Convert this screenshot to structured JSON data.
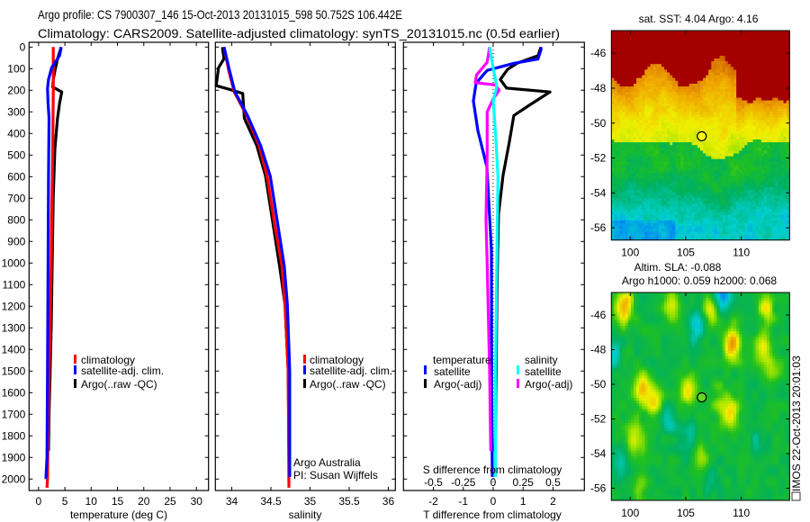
{
  "title": {
    "line1": "Argo profile: CS 7900307_146 15-Oct-2013 20131015_598 50.752S 106.442E",
    "line2": "Climatology: CARS2009. Satellite-adjusted climatology: synTS_20131015.nc (0.5d earlier)"
  },
  "colors": {
    "climatology": "#ff0000",
    "satellite": "#0000ff",
    "argo": "#000000",
    "sal_satellite": "#00ffff",
    "sal_argo": "#ff00ff"
  },
  "chart_data": [
    {
      "type": "line",
      "id": "temperature",
      "xlabel": "temperature (deg C)",
      "ylabel": "depth",
      "xlim": [
        -1.8,
        32.3
      ],
      "ylim": [
        2053,
        -22
      ],
      "xticks": [
        0,
        5,
        10,
        15,
        20,
        25,
        30
      ],
      "xtick_labels": [
        "0",
        "5",
        "10",
        "15",
        "20",
        "25",
        "30"
      ],
      "yticks": [
        0,
        100,
        200,
        300,
        400,
        500,
        600,
        700,
        800,
        900,
        1000,
        1100,
        1200,
        1300,
        1400,
        1500,
        1600,
        1700,
        1800,
        1900,
        2000
      ],
      "ytick_labels": [
        "0",
        "100",
        "200",
        "300",
        "400",
        "500",
        "600",
        "700",
        "800",
        "900",
        "1000",
        "1100",
        "1200",
        "1300",
        "1400",
        "1500",
        "1600",
        "1700",
        "1800",
        "1900",
        "2000"
      ],
      "legend": {
        "placement": "center-left",
        "entries": [
          "climatology",
          "satellite-adj. clim.",
          "Argo(..raw -QC)"
        ]
      },
      "series": [
        {
          "name": "Argo(..raw -QC)",
          "color": "#000000",
          "depth": [
            0,
            55,
            110,
            150,
            185,
            208,
            260,
            330,
            470,
            690,
            1000,
            1300,
            1500,
            1700,
            1870
          ],
          "values": [
            4.3,
            3.6,
            3.1,
            2.8,
            2.7,
            4.4,
            4.0,
            3.6,
            3.1,
            2.8,
            2.6,
            2.4,
            2.2,
            2.0,
            1.9
          ]
        },
        {
          "name": "climatology",
          "color": "#ff0000",
          "depth": [
            0,
            200,
            500,
            800,
            1000,
            1300,
            1500,
            1800,
            2000,
            2040
          ],
          "values": [
            2.8,
            2.8,
            2.7,
            2.5,
            2.4,
            2.2,
            2.0,
            1.8,
            1.7,
            1.6
          ]
        },
        {
          "name": "satellite-adj. clim.",
          "color": "#0000ff",
          "depth": [
            0,
            40,
            96,
            150,
            192,
            260,
            330,
            600,
            1000,
            1500,
            1900,
            2000
          ],
          "values": [
            4.3,
            4.0,
            2.5,
            1.9,
            1.7,
            1.8,
            2.0,
            1.9,
            1.8,
            1.7,
            1.6,
            1.4
          ]
        }
      ]
    },
    {
      "type": "line",
      "id": "salinity",
      "xlabel": "salinity",
      "xlim": [
        33.79,
        36.09
      ],
      "ylim": [
        2053,
        -22
      ],
      "xticks": [
        34,
        34.5,
        35,
        35.5,
        36
      ],
      "xtick_labels": [
        "34",
        "34.5",
        "35",
        "35.5",
        "36"
      ],
      "yticks": [
        0,
        100,
        200,
        300,
        400,
        500,
        600,
        700,
        800,
        900,
        1000,
        1100,
        1200,
        1300,
        1400,
        1500,
        1600,
        1700,
        1800,
        1900,
        2000
      ],
      "legend": {
        "placement": "center-right",
        "entries": [
          "climatology",
          "satellite-adj. clim.",
          "Argo(..raw -QC)"
        ]
      },
      "annotation": [
        "Argo Australia",
        "PI: Susan Wijffels"
      ],
      "series": [
        {
          "name": "Argo(..raw -QC)",
          "color": "#000000",
          "depth": [
            0,
            54,
            96,
            179,
            198,
            215,
            330,
            457,
            596,
            804,
            1012,
            1192,
            1500,
            1850
          ],
          "values": [
            33.88,
            33.9,
            33.83,
            33.8,
            33.99,
            34.14,
            34.16,
            34.32,
            34.43,
            34.52,
            34.61,
            34.68,
            34.72,
            34.73
          ]
        },
        {
          "name": "climatology",
          "color": "#ff0000",
          "depth": [
            0,
            108,
            207,
            317,
            457,
            596,
            804,
            1012,
            1192,
            1500,
            2040
          ],
          "values": [
            33.9,
            33.96,
            34.03,
            34.19,
            34.35,
            34.45,
            34.54,
            34.64,
            34.68,
            34.72,
            34.73
          ]
        },
        {
          "name": "satellite-adj. clim.",
          "color": "#0000ff",
          "depth": [
            0,
            108,
            207,
            317,
            457,
            596,
            804,
            1012,
            1192,
            1500,
            1990
          ],
          "values": [
            33.9,
            33.97,
            34.04,
            34.2,
            34.37,
            34.49,
            34.58,
            34.67,
            34.71,
            34.74,
            34.74
          ]
        }
      ]
    },
    {
      "type": "line",
      "id": "difference",
      "xlabel": "T difference from climatology",
      "xlabel_secondary": "S difference from climatology",
      "xlim": [
        -3.0,
        3.05
      ],
      "xlim_secondary": [
        -0.75,
        0.7625
      ],
      "ylim": [
        2053,
        -22
      ],
      "xticks": [
        -2,
        -1,
        0,
        1,
        2
      ],
      "xtick_labels": [
        "-2",
        "-1",
        "0",
        "1",
        "2"
      ],
      "xticks_secondary": [
        -0.5,
        -0.25,
        0,
        0.25,
        0.5
      ],
      "xtick_labels_secondary": [
        "-0.5",
        "-0.25",
        "0",
        "0.25",
        "0.5"
      ],
      "yticks": [
        0,
        100,
        200,
        300,
        400,
        500,
        600,
        700,
        800,
        900,
        1000,
        1100,
        1200,
        1300,
        1400,
        1500,
        1600,
        1700,
        1800,
        1900,
        2000
      ],
      "legend": {
        "placement": "center",
        "temperature_heading": "temperature",
        "salinity_heading": "salinity",
        "temperature_entries": [
          "satellite",
          "Argo(-adj)"
        ],
        "salinity_entries": [
          "satellite",
          "Argo(-adj)"
        ]
      },
      "series": [
        {
          "name": "T Argo(-adj)",
          "axis": "T",
          "color": "#000000",
          "depth": [
            0,
            40,
            75,
            104,
            150,
            190,
            208,
            270,
            317,
            440,
            595,
            775,
            940,
            1200,
            1500,
            1870
          ],
          "values": [
            1.6,
            1.5,
            0.8,
            0.48,
            0.24,
            0.45,
            1.9,
            1.2,
            0.69,
            0.54,
            0.33,
            0.18,
            0.15,
            0.12,
            0.1,
            0.07
          ]
        },
        {
          "name": "T satellite",
          "axis": "T",
          "color": "#0000ff",
          "depth": [
            0,
            12,
            55,
            75,
            108,
            167,
            250,
            387,
            555,
            940,
            1500,
            1990
          ],
          "values": [
            1.6,
            1.6,
            1.5,
            0.7,
            -0.2,
            -0.57,
            -0.66,
            -0.51,
            -0.21,
            -0.06,
            -0.05,
            -0.03
          ]
        },
        {
          "name": "S Argo(-adj)",
          "axis": "S",
          "color": "#ff00ff",
          "depth": [
            0,
            70,
            130,
            165,
            175,
            200,
            240,
            300,
            500,
            800,
            1000,
            1500,
            1870
          ],
          "values": [
            -0.03,
            -0.05,
            -0.14,
            -0.15,
            0.02,
            0.05,
            0.0,
            -0.05,
            -0.05,
            -0.06,
            -0.05,
            -0.03,
            -0.02
          ]
        },
        {
          "name": "S satellite",
          "axis": "S",
          "color": "#00ffff",
          "depth": [
            0,
            100,
            180,
            250,
            400,
            600,
            1000,
            1500,
            1990
          ],
          "values": [
            -0.03,
            0.0,
            0.03,
            0.0,
            0.02,
            0.04,
            0.03,
            0.02,
            0.02
          ]
        }
      ]
    },
    {
      "type": "heatmap",
      "id": "sst_map",
      "title": "sat. SST: 4.04 Argo: 4.16",
      "lon_lim": [
        98.3,
        114.35
      ],
      "lat_lim": [
        -56.7,
        -44.7
      ],
      "lon_ticks": [
        100,
        105,
        110
      ],
      "lon_tick_labels": [
        "100",
        "105",
        "110"
      ],
      "lat_ticks": [
        -46,
        -48,
        -50,
        -52,
        -54,
        -56
      ],
      "lat_tick_labels": [
        "-46",
        "-48",
        "-50",
        "-52",
        "-54",
        "-56"
      ],
      "marker": {
        "lon": 106.442,
        "lat": -50.752,
        "fill": "#ffff00"
      }
    },
    {
      "type": "heatmap",
      "id": "sla_map",
      "title_line1": "Altim. SLA: -0.088",
      "title_line2": "Argo h1000: 0.059 h2000: 0.068",
      "lon_lim": [
        98.3,
        114.35
      ],
      "lat_lim": [
        -56.7,
        -44.7
      ],
      "lon_ticks": [
        100,
        105,
        110
      ],
      "lon_tick_labels": [
        "100",
        "105",
        "110"
      ],
      "lat_ticks": [
        -46,
        -48,
        -50,
        -52,
        -54,
        -56
      ],
      "lat_tick_labels": [
        "-46",
        "-48",
        "-50",
        "-52",
        "-54",
        "-56"
      ],
      "marker": {
        "lon": 106.442,
        "lat": -50.752,
        "fill": "#66d622"
      }
    }
  ],
  "footer": {
    "stamp": "IMOS 22-Oct-2013 20:01:03"
  }
}
